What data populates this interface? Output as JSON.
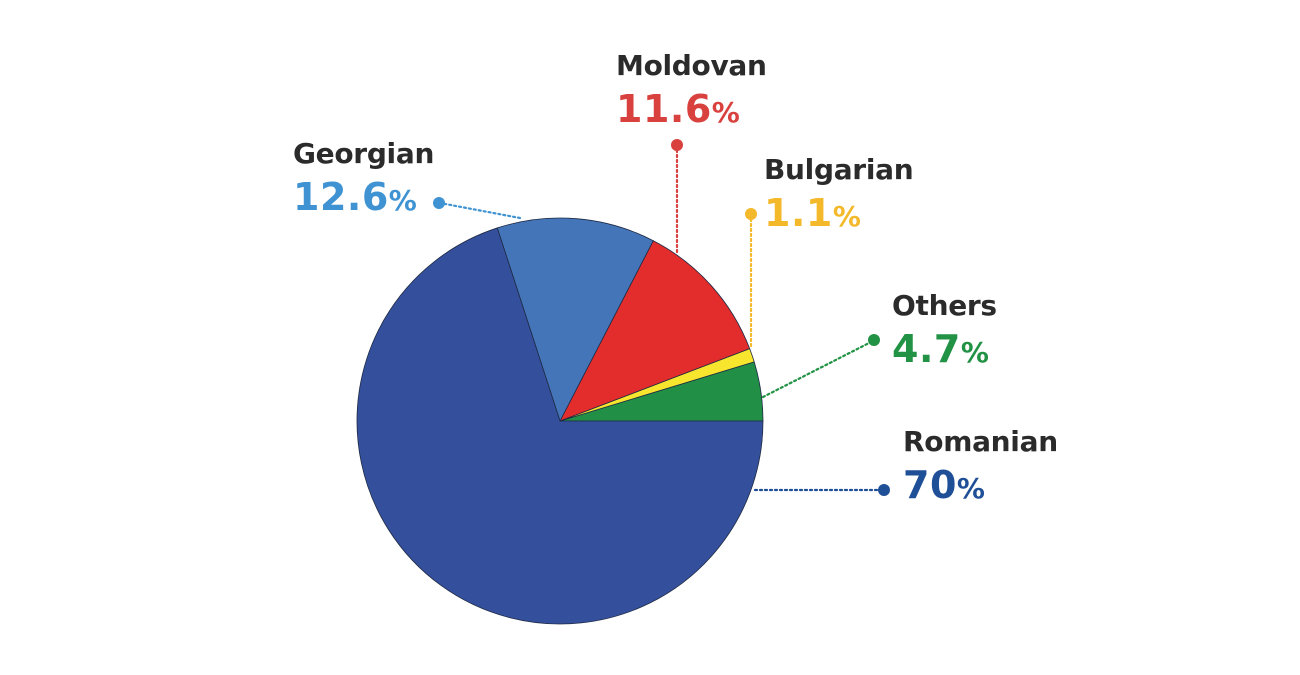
{
  "chart_data": {
    "type": "pie",
    "slices": [
      {
        "label": "Romanian",
        "value": 70,
        "value_label": "70",
        "color": "#34509c",
        "text_color": "#1f4f97"
      },
      {
        "label": "Georgian",
        "value": 12.6,
        "value_label": "12.6",
        "color": "#4475b8",
        "text_color": "#3f93d2"
      },
      {
        "label": "Moldovan",
        "value": 11.6,
        "value_label": "11.6",
        "color": "#e32d2d",
        "text_color": "#d8413e"
      },
      {
        "label": "Bulgarian",
        "value": 1.1,
        "value_label": "1.1",
        "color": "#f7e62d",
        "text_color": "#f4b92a"
      },
      {
        "label": "Others",
        "value": 4.7,
        "value_label": "4.7",
        "color": "#219046",
        "text_color": "#229245"
      }
    ],
    "percent_sign": "%",
    "start": "3 o'clock",
    "direction": "counter-clockwise (Others, Bulgarian, Moldovan, Georgian, Romanian)",
    "legend": "none; callout labels with dotted leader lines"
  }
}
